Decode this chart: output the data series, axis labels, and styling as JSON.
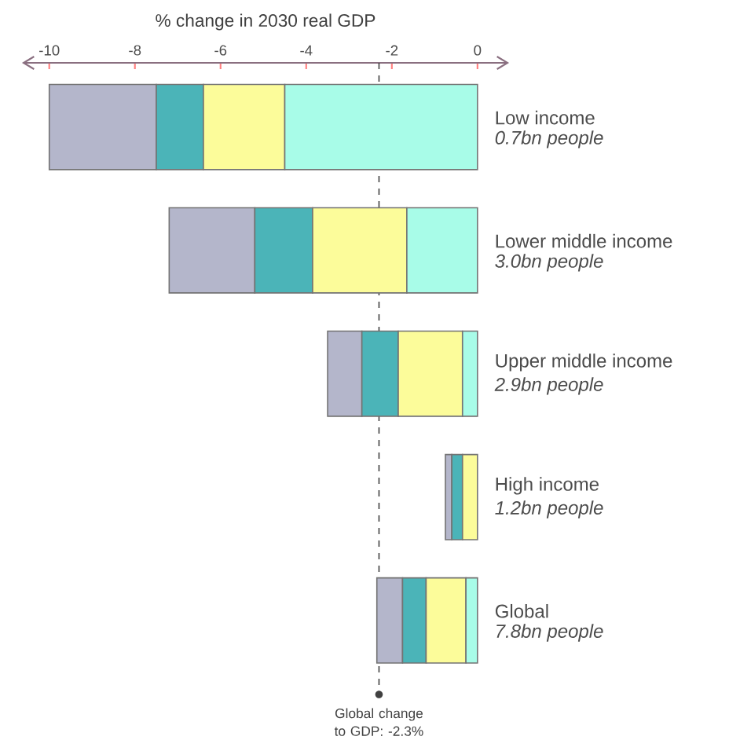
{
  "chart_data": {
    "type": "bar",
    "orientation": "horizontal",
    "stacked": true,
    "title": "% change in 2030 real GDP",
    "categories": [
      "Low income",
      "Lower middle income",
      "Upper middle income",
      "High income",
      "Global"
    ],
    "series": [
      {
        "color": "#a8fce8",
        "values": [
          -4.5,
          -1.65,
          -0.35,
          0,
          -0.27
        ]
      },
      {
        "color": "#fcfc9a",
        "values": [
          -1.9,
          -2.2,
          -1.5,
          -0.35,
          -0.93
        ]
      },
      {
        "color": "#4bb4b8",
        "values": [
          -1.1,
          -1.35,
          -0.85,
          -0.25,
          -0.55
        ]
      },
      {
        "color": "#b4b6cb",
        "values": [
          -2.5,
          -2.0,
          -0.8,
          -0.15,
          -0.6
        ]
      }
    ],
    "xlim": [
      -10.6,
      0.7
    ],
    "xticks": [
      -10,
      -8,
      -6,
      -4,
      -2,
      0
    ],
    "ref_lines": [
      {
        "axis": "x",
        "value": -2.3,
        "label": "Global change to GDP: -2.3%",
        "line_style": "dashed"
      }
    ],
    "annotations": [
      "0.7bn people",
      "3.0bn people",
      "2.9bn people",
      "1.2bn people",
      "7.8bn people"
    ]
  }
}
